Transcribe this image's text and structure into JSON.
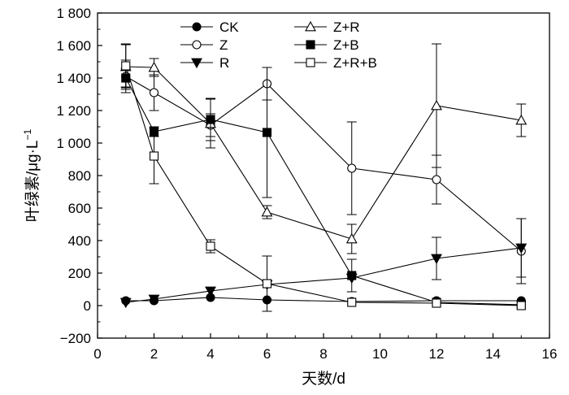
{
  "chart_data": {
    "type": "line",
    "xlabel": "天数/d",
    "ylabel": "叶绿素/μg·L",
    "ylabel_superscript": "−1",
    "xlim": [
      0,
      16
    ],
    "ylim": [
      -200,
      1800
    ],
    "xticks": [
      0,
      2,
      4,
      6,
      8,
      10,
      12,
      14,
      16
    ],
    "yticks": [
      -200,
      0,
      200,
      400,
      600,
      800,
      1000,
      1200,
      1400,
      1600,
      1800
    ],
    "xtick_labels": [
      "0",
      "2",
      "4",
      "6",
      "8",
      "10",
      "12",
      "14",
      "16"
    ],
    "ytick_labels": [
      "−200",
      "0",
      "200",
      "400",
      "600",
      "800",
      "1 000",
      "1 200",
      "1 400",
      "1 600",
      "1 800"
    ],
    "grid": false,
    "legend_position": "top",
    "x": [
      1,
      2,
      4,
      6,
      9,
      12,
      15
    ],
    "series": [
      {
        "name": "CK",
        "marker": "filled-circle",
        "values": [
          30,
          30,
          50,
          35,
          25,
          30,
          30
        ],
        "errors": [
          0,
          0,
          0,
          0,
          0,
          0,
          0
        ]
      },
      {
        "name": "Z",
        "marker": "open-circle",
        "values": [
          1410,
          1310,
          1110,
          1365,
          845,
          775,
          335
        ],
        "errors": [
          100,
          110,
          70,
          100,
          285,
          150,
          200
        ]
      },
      {
        "name": "R",
        "marker": "filled-triangle-down",
        "values": [
          20,
          40,
          90,
          130,
          170,
          290,
          355
        ],
        "errors": [
          0,
          0,
          0,
          0,
          0,
          130,
          180
        ]
      },
      {
        "name": "Z+R",
        "marker": "open-triangle-up",
        "values": [
          1470,
          1465,
          1120,
          575,
          410,
          1230,
          1140
        ],
        "errors": [
          140,
          55,
          150,
          40,
          90,
          380,
          100
        ]
      },
      {
        "name": "Z+B",
        "marker": "filled-square",
        "values": [
          1400,
          1070,
          1145,
          1065,
          185,
          20,
          5
        ],
        "errors": [
          60,
          30,
          130,
          400,
          100,
          0,
          0
        ]
      },
      {
        "name": "Z+R+B",
        "marker": "open-square",
        "values": [
          1475,
          920,
          365,
          135,
          20,
          15,
          0
        ],
        "errors": [
          130,
          170,
          40,
          170,
          0,
          0,
          0
        ]
      }
    ]
  }
}
